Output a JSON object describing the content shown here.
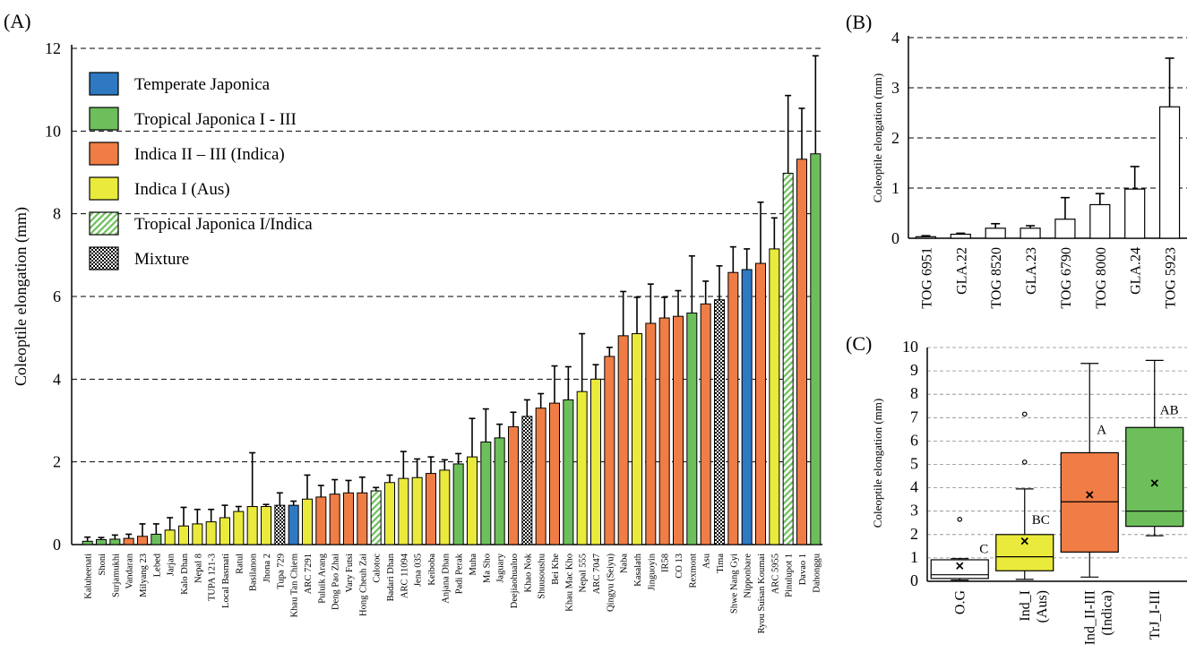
{
  "panels": {
    "a_label": "(A)",
    "b_label": "(B)",
    "c_label": "(C)"
  },
  "colors": {
    "temperate_japonica": "#2f78c2",
    "tropical_japonica": "#6cbf5a",
    "indica": "#f07d45",
    "aus": "#eaea3c",
    "stroke": "#000000",
    "grid": "#000000"
  },
  "chart_data": [
    {
      "type": "bar",
      "ylabel": "Coleoptile elongation (mm)",
      "ylim": [
        0,
        12
      ],
      "yticks": [
        0,
        2,
        4,
        6,
        8,
        10,
        12
      ],
      "grid": "dashed-horizontal",
      "legend_position": "top-left",
      "legend": [
        {
          "name": "Temperate Japonica",
          "fill": "temperate"
        },
        {
          "name": "Tropical Japonica I - III",
          "fill": "tropical"
        },
        {
          "name": "Indica II – III (Indica)",
          "fill": "indica"
        },
        {
          "name": "Indica I (Aus)",
          "fill": "aus"
        },
        {
          "name": "Tropical Japonica I/Indica",
          "fill": "hatch"
        },
        {
          "name": "Mixture",
          "fill": "checker"
        }
      ],
      "categories": [
        "Kaluheenati",
        "Shoni",
        "Surjamukhi",
        "Vandaran",
        "Milyang 23",
        "Lebed",
        "Jarjan",
        "Kalo Dhan",
        "Nepal 8",
        "TUPA 121-3",
        "Local Basmati",
        "Ratul",
        "Basilanon",
        "Jhona 2",
        "Tupa 729",
        "Khau Tan Chiem",
        "ARC 7291",
        "Puluik Arang",
        "Deng Pao Zhai",
        "Vary Futsi",
        "Hong Cheuh Zai",
        "Calotoc",
        "Badari Dhan",
        "ARC 11094",
        "Jena 035",
        "Keiboba",
        "Anjana Dhan",
        "Padi Perak",
        "Muha",
        "Ma Sho",
        "Jaguary",
        "Deejiaohualuo",
        "Khao Nok",
        "Shuusoushu",
        "Bei Khe",
        "Khau Mac Kho",
        "Nepal 555",
        "ARC 7047",
        "Qingyu (Seiyu)",
        "Naba",
        "Kasalath",
        "Jinguoyin",
        "IR58",
        "CO 13",
        "Rexmont",
        "Asu",
        "Tima",
        "Shwe Nang Gyi",
        "Nipponbare",
        "Ryou Suisan Koumai",
        "ARC 5955",
        "Pinulupot 1",
        "Davao 1",
        "Dahonggu"
      ],
      "values": [
        0.08,
        0.12,
        0.13,
        0.15,
        0.2,
        0.25,
        0.35,
        0.45,
        0.5,
        0.55,
        0.65,
        0.8,
        0.92,
        0.92,
        0.95,
        0.95,
        1.1,
        1.15,
        1.22,
        1.25,
        1.25,
        1.3,
        1.5,
        1.6,
        1.62,
        1.72,
        1.8,
        1.95,
        2.12,
        2.48,
        2.58,
        2.85,
        3.1,
        3.3,
        3.42,
        3.5,
        3.7,
        4.0,
        4.55,
        5.05,
        5.1,
        5.35,
        5.48,
        5.52,
        5.6,
        5.82,
        5.92,
        6.58,
        6.65,
        6.8,
        7.15,
        8.98,
        9.32,
        9.45
      ],
      "errors": [
        0.1,
        0.05,
        0.1,
        0.1,
        0.3,
        0.25,
        0.3,
        0.45,
        0.35,
        0.3,
        0.3,
        0.12,
        1.3,
        0.05,
        0.3,
        0.1,
        0.58,
        0.28,
        0.35,
        0.3,
        0.38,
        0.08,
        0.18,
        0.65,
        0.45,
        0.4,
        0.25,
        0.25,
        0.93,
        0.8,
        0.33,
        0.35,
        0.4,
        0.35,
        0.9,
        0.8,
        1.4,
        0.35,
        0.22,
        1.07,
        0.88,
        0.95,
        0.5,
        0.62,
        1.38,
        0.55,
        0.82,
        0.62,
        0.5,
        1.48,
        0.75,
        1.88,
        1.23,
        2.37
      ],
      "groups": [
        "tropical",
        "tropical",
        "tropical",
        "indica",
        "indica",
        "tropical",
        "aus",
        "aus",
        "aus",
        "aus",
        "aus",
        "aus",
        "aus",
        "aus",
        "checker",
        "temperate",
        "aus",
        "indica",
        "indica",
        "indica",
        "indica",
        "hatch",
        "aus",
        "aus",
        "aus",
        "indica",
        "aus",
        "tropical",
        "aus",
        "tropical",
        "tropical",
        "indica",
        "checker",
        "indica",
        "indica",
        "tropical",
        "aus",
        "aus",
        "indica",
        "indica",
        "aus",
        "indica",
        "indica",
        "indica",
        "tropical",
        "indica",
        "checker",
        "indica",
        "temperate",
        "indica",
        "aus",
        "hatch",
        "indica",
        "tropical"
      ]
    },
    {
      "type": "bar",
      "ylabel": "Coleoptile elongation (mm)",
      "ylim": [
        0,
        4
      ],
      "yticks": [
        0,
        1,
        2,
        3,
        4
      ],
      "grid": "dashed-horizontal",
      "categories": [
        "TOG 6951",
        "GLA.22",
        "TOG 8520",
        "GLA.23",
        "TOG 6790",
        "TOG 8000",
        "GLA.24",
        "TOG 5923"
      ],
      "values": [
        0.03,
        0.08,
        0.2,
        0.2,
        0.38,
        0.67,
        0.98,
        2.62
      ],
      "errors": [
        0.02,
        0.02,
        0.09,
        0.05,
        0.43,
        0.22,
        0.45,
        0.97
      ]
    },
    {
      "type": "box",
      "ylabel": "Coleoptile elongation (mm)",
      "ylim": [
        0,
        10
      ],
      "yticks": [
        0,
        1,
        2,
        3,
        4,
        5,
        6,
        7,
        8,
        9,
        10
      ],
      "grid": "dashed-horizontal",
      "categories": [
        {
          "line1": "O.G",
          "line2": ""
        },
        {
          "line1": "Ind_I",
          "line2": "(Aus)"
        },
        {
          "line1": "Ind_II-III",
          "line2": "(Indica)"
        },
        {
          "line1": "TrJ_I-III",
          "line2": ""
        }
      ],
      "boxes": [
        {
          "min": 0.05,
          "q1": 0.12,
          "median": 0.28,
          "q3": 0.92,
          "max": 0.97,
          "mean": 0.66,
          "outliers": [
            2.65
          ],
          "letter": "C",
          "fill": "#ffffff"
        },
        {
          "min": 0.08,
          "q1": 0.45,
          "median": 1.05,
          "q3": 2.0,
          "max": 3.95,
          "mean": 1.72,
          "outliers": [
            5.1,
            7.15
          ],
          "letter": "BC",
          "fill": "#eaea3c"
        },
        {
          "min": 0.18,
          "q1": 1.25,
          "median": 3.4,
          "q3": 5.5,
          "max": 9.32,
          "mean": 3.7,
          "outliers": [],
          "letter": "A",
          "fill": "#f07d45"
        },
        {
          "min": 1.95,
          "q1": 2.35,
          "median": 3.0,
          "q3": 6.58,
          "max": 9.45,
          "mean": 4.2,
          "outliers": [],
          "letter": "AB",
          "fill": "#6cbf5a"
        }
      ]
    }
  ]
}
